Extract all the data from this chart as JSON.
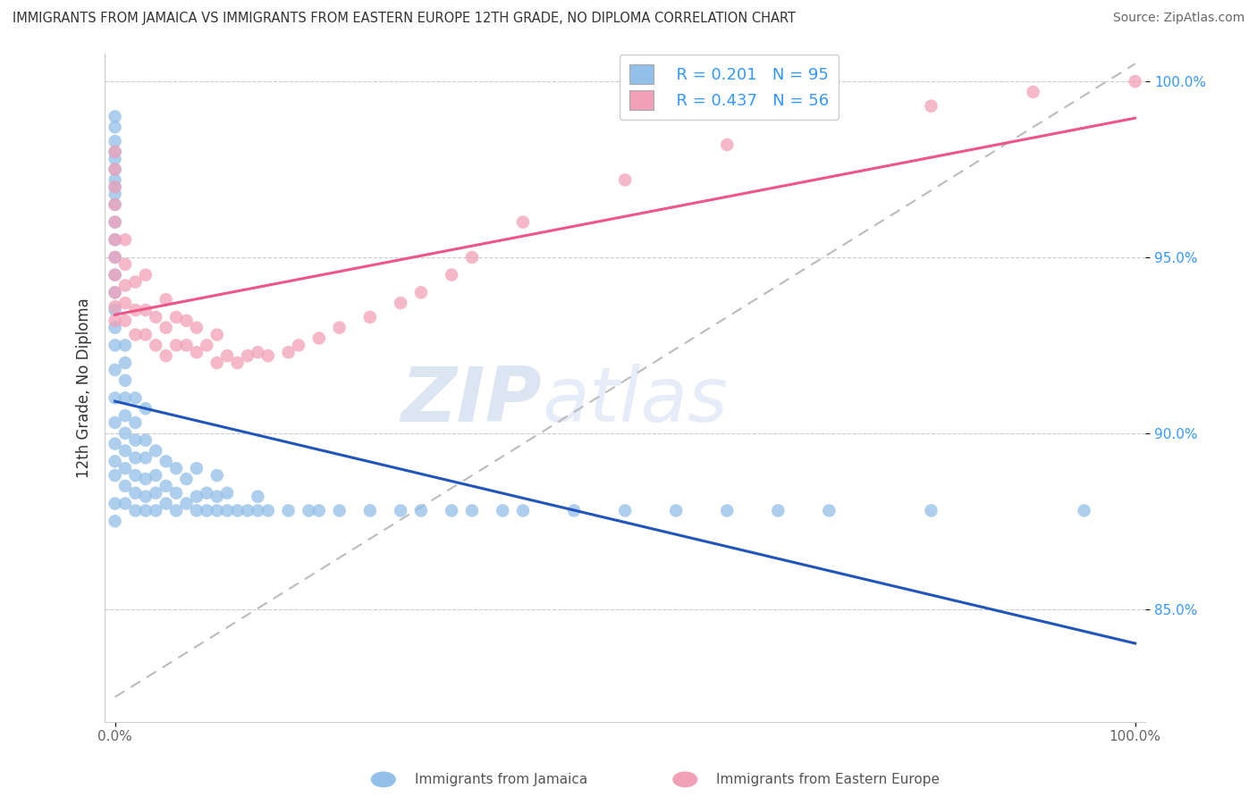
{
  "title": "IMMIGRANTS FROM JAMAICA VS IMMIGRANTS FROM EASTERN EUROPE 12TH GRADE, NO DIPLOMA CORRELATION CHART",
  "source": "Source: ZipAtlas.com",
  "ylabel": "12th Grade, No Diploma",
  "blue_R": 0.201,
  "blue_N": 95,
  "pink_R": 0.437,
  "pink_N": 56,
  "blue_color": "#92C0E8",
  "pink_color": "#F2A0B8",
  "blue_line_color": "#2255BB",
  "pink_line_color": "#EE5588",
  "dash_color": "#BBBBBB",
  "text_color_blue": "#3399FF",
  "grid_color": "#CCCCCC",
  "background_color": "#FFFFFF",
  "watermark_color": "#C8D8F0",
  "x_blue": [
    0.0,
    0.0,
    0.0,
    0.0,
    0.0,
    0.0,
    0.0,
    0.0,
    0.0,
    0.0,
    0.0,
    0.0,
    0.0,
    0.0,
    0.0,
    0.0,
    0.0,
    0.0,
    0.0,
    0.0,
    0.0,
    0.0,
    0.0,
    0.0,
    0.0,
    0.0,
    0.01,
    0.01,
    0.01,
    0.01,
    0.01,
    0.01,
    0.01,
    0.01,
    0.01,
    0.01,
    0.02,
    0.02,
    0.02,
    0.02,
    0.02,
    0.02,
    0.02,
    0.03,
    0.03,
    0.03,
    0.03,
    0.03,
    0.03,
    0.04,
    0.04,
    0.04,
    0.04,
    0.05,
    0.05,
    0.05,
    0.06,
    0.06,
    0.06,
    0.07,
    0.07,
    0.08,
    0.08,
    0.08,
    0.09,
    0.09,
    0.1,
    0.1,
    0.1,
    0.11,
    0.11,
    0.12,
    0.13,
    0.14,
    0.14,
    0.15,
    0.17,
    0.19,
    0.2,
    0.22,
    0.25,
    0.28,
    0.3,
    0.33,
    0.35,
    0.38,
    0.4,
    0.45,
    0.5,
    0.55,
    0.6,
    0.65,
    0.7,
    0.8,
    0.95
  ],
  "y_blue": [
    0.875,
    0.88,
    0.888,
    0.892,
    0.897,
    0.903,
    0.91,
    0.918,
    0.925,
    0.93,
    0.935,
    0.94,
    0.945,
    0.95,
    0.955,
    0.96,
    0.965,
    0.968,
    0.97,
    0.972,
    0.975,
    0.978,
    0.98,
    0.983,
    0.987,
    0.99,
    0.88,
    0.885,
    0.89,
    0.895,
    0.9,
    0.905,
    0.91,
    0.915,
    0.92,
    0.925,
    0.878,
    0.883,
    0.888,
    0.893,
    0.898,
    0.903,
    0.91,
    0.878,
    0.882,
    0.887,
    0.893,
    0.898,
    0.907,
    0.878,
    0.883,
    0.888,
    0.895,
    0.88,
    0.885,
    0.892,
    0.878,
    0.883,
    0.89,
    0.88,
    0.887,
    0.878,
    0.882,
    0.89,
    0.878,
    0.883,
    0.878,
    0.882,
    0.888,
    0.878,
    0.883,
    0.878,
    0.878,
    0.878,
    0.882,
    0.878,
    0.878,
    0.878,
    0.878,
    0.878,
    0.878,
    0.878,
    0.878,
    0.878,
    0.878,
    0.878,
    0.878,
    0.878,
    0.878,
    0.878,
    0.878,
    0.878,
    0.878,
    0.878,
    0.878
  ],
  "x_pink": [
    0.0,
    0.0,
    0.0,
    0.0,
    0.0,
    0.0,
    0.0,
    0.0,
    0.0,
    0.0,
    0.0,
    0.01,
    0.01,
    0.01,
    0.01,
    0.01,
    0.02,
    0.02,
    0.02,
    0.03,
    0.03,
    0.03,
    0.04,
    0.04,
    0.05,
    0.05,
    0.05,
    0.06,
    0.06,
    0.07,
    0.07,
    0.08,
    0.08,
    0.09,
    0.1,
    0.1,
    0.11,
    0.12,
    0.13,
    0.14,
    0.15,
    0.17,
    0.18,
    0.2,
    0.22,
    0.25,
    0.28,
    0.3,
    0.33,
    0.35,
    0.4,
    0.5,
    0.6,
    0.8,
    0.9,
    1.0
  ],
  "y_pink": [
    0.932,
    0.936,
    0.94,
    0.945,
    0.95,
    0.955,
    0.96,
    0.965,
    0.97,
    0.975,
    0.98,
    0.932,
    0.937,
    0.942,
    0.948,
    0.955,
    0.928,
    0.935,
    0.943,
    0.928,
    0.935,
    0.945,
    0.925,
    0.933,
    0.922,
    0.93,
    0.938,
    0.925,
    0.933,
    0.925,
    0.932,
    0.923,
    0.93,
    0.925,
    0.92,
    0.928,
    0.922,
    0.92,
    0.922,
    0.923,
    0.922,
    0.923,
    0.925,
    0.927,
    0.93,
    0.933,
    0.937,
    0.94,
    0.945,
    0.95,
    0.96,
    0.972,
    0.982,
    0.993,
    0.997,
    1.0
  ],
  "y_ticks": [
    0.85,
    0.9,
    0.95,
    1.0
  ],
  "y_tick_labels": [
    "85.0%",
    "90.0%",
    "95.0%",
    "100.0%"
  ],
  "x_ticks": [
    0.0,
    1.0
  ],
  "x_tick_labels": [
    "0.0%",
    "100.0%"
  ]
}
